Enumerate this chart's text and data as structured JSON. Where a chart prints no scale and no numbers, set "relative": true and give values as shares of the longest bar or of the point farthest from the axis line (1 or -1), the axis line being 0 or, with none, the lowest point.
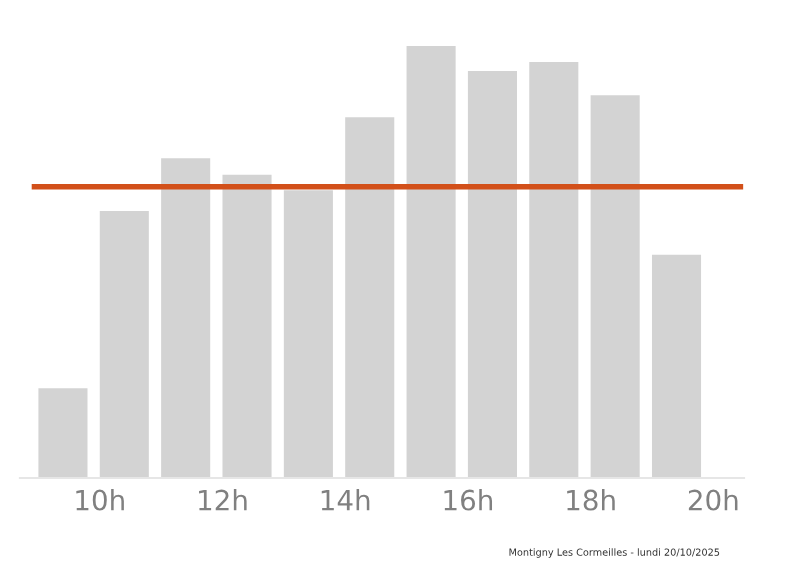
{
  "chart_data": {
    "type": "bar",
    "relative": true,
    "x": [
      9.4,
      10.4,
      11.4,
      12.4,
      13.4,
      14.4,
      15.4,
      16.4,
      17.4,
      18.4,
      19.4
    ],
    "values": [
      0.208,
      0.618,
      0.74,
      0.702,
      0.666,
      0.835,
      1,
      0.942,
      0.963,
      0.886,
      0.517
    ],
    "color": "#d3d3d3",
    "xlim": [
      8.7,
      20.5
    ],
    "xticks": [
      {
        "value": 10,
        "label": "10h"
      },
      {
        "value": 12,
        "label": "12h"
      },
      {
        "value": 14,
        "label": "14h"
      },
      {
        "value": 16,
        "label": "16h"
      },
      {
        "value": 18,
        "label": "18h"
      },
      {
        "value": 20,
        "label": "20h"
      }
    ],
    "ref_lines": [
      {
        "axis": "y",
        "value": 0.674,
        "color": "#d2501a"
      }
    ],
    "annotations": [
      "Montigny Les Cormeilles - lundi 20/10/2025"
    ],
    "grid": false,
    "legend": false
  }
}
